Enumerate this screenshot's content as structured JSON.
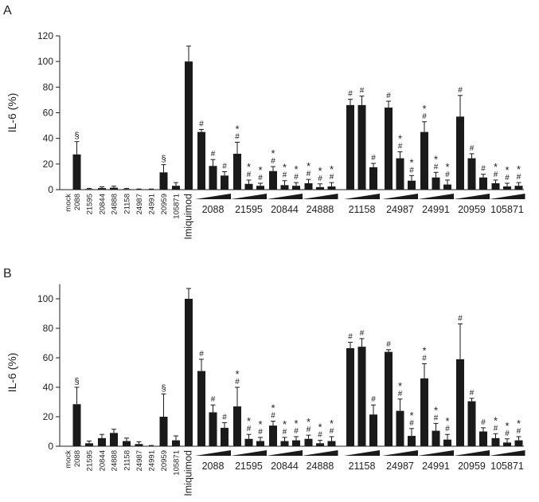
{
  "chart_data": [
    {
      "panel_label": "A",
      "type": "bar",
      "ylabel": "IL-6 (%)",
      "ylim": [
        0,
        120
      ],
      "yticks": [
        0,
        20,
        40,
        60,
        80,
        100,
        120
      ],
      "single_labels": [
        "mock",
        "2088",
        "21595",
        "20844",
        "24888",
        "21158",
        "24987",
        "24991",
        "20959",
        "105871",
        "Imiquimod"
      ],
      "single_values": [
        0,
        27.5,
        0.5,
        1.2,
        1.5,
        0.5,
        0.2,
        0.2,
        13.5,
        3
      ],
      "single_errors": [
        0,
        10,
        0.5,
        1,
        1.2,
        0.5,
        0.3,
        0.3,
        6,
        2.5
      ],
      "single_marks": [
        "",
        "§",
        "",
        "",
        "",
        "",
        "",
        "",
        "§",
        ""
      ],
      "imiquimod_value": 100,
      "imiquimod_error": 12,
      "groups": [
        {
          "name": "2088",
          "values": [
            45,
            18.5,
            11
          ],
          "errors": [
            2,
            5,
            3
          ],
          "marks": [
            "#",
            "#",
            "#"
          ],
          "stars": [
            false,
            false,
            false
          ]
        },
        {
          "name": "21595",
          "values": [
            28,
            4.5,
            3
          ],
          "errors": [
            9,
            3,
            2
          ],
          "marks": [
            "#",
            "#",
            "#"
          ],
          "stars": [
            true,
            true,
            true
          ]
        },
        {
          "name": "20844",
          "values": [
            14.5,
            3.5,
            3
          ],
          "errors": [
            3.5,
            3.5,
            2.5
          ],
          "marks": [
            "#",
            "#",
            "#"
          ],
          "stars": [
            true,
            true,
            true
          ]
        },
        {
          "name": "24888",
          "values": [
            5,
            2,
            2.5
          ],
          "errors": [
            3,
            2.5,
            3
          ],
          "marks": [
            "#",
            "#",
            "#"
          ],
          "stars": [
            true,
            true,
            true
          ]
        },
        {
          "name": "21158",
          "values": [
            66,
            66,
            17.5
          ],
          "errors": [
            4.5,
            7,
            3
          ],
          "marks": [
            "#",
            "#",
            "#"
          ],
          "stars": [
            false,
            false,
            false
          ]
        },
        {
          "name": "24987",
          "values": [
            64,
            24.5,
            7
          ],
          "errors": [
            5,
            5,
            4
          ],
          "marks": [
            "#",
            "#",
            "#"
          ],
          "stars": [
            false,
            true,
            true
          ]
        },
        {
          "name": "24991",
          "values": [
            45,
            9.5,
            4
          ],
          "errors": [
            8,
            4,
            3.5
          ],
          "marks": [
            "#",
            "#",
            "#"
          ],
          "stars": [
            true,
            true,
            true
          ]
        },
        {
          "name": "20959",
          "values": [
            57,
            24.5,
            9.5
          ],
          "errors": [
            16.5,
            3.5,
            2.5
          ],
          "marks": [
            "#",
            "#",
            "#"
          ],
          "stars": [
            false,
            false,
            false
          ]
        },
        {
          "name": "105871",
          "values": [
            5,
            2.5,
            3
          ],
          "errors": [
            2.5,
            2.5,
            2.5
          ],
          "marks": [
            "#",
            "#",
            "#"
          ],
          "stars": [
            true,
            true,
            true
          ]
        }
      ]
    },
    {
      "panel_label": "B",
      "type": "bar",
      "ylabel": "IL-6 (%)",
      "ylim": [
        0,
        110
      ],
      "yticks": [
        0,
        20,
        40,
        60,
        80,
        100
      ],
      "single_labels": [
        "mock",
        "2088",
        "21595",
        "20844",
        "24888",
        "21158",
        "24987",
        "24991",
        "20959",
        "105871",
        "Imiquimod"
      ],
      "single_values": [
        0,
        28.5,
        2,
        5.5,
        9,
        3.5,
        1.5,
        0.2,
        20,
        4
      ],
      "single_errors": [
        0,
        11.5,
        1.5,
        2.5,
        2.5,
        2,
        1.5,
        0.3,
        15.5,
        3
      ],
      "single_marks": [
        "",
        "§",
        "",
        "",
        "",
        "",
        "",
        "",
        "§",
        ""
      ],
      "imiquimod_value": 100,
      "imiquimod_error": 7,
      "groups": [
        {
          "name": "2088",
          "values": [
            51,
            23,
            12.5
          ],
          "errors": [
            8,
            5,
            3.5
          ],
          "marks": [
            "#",
            "#",
            "#"
          ],
          "stars": [
            false,
            false,
            false
          ]
        },
        {
          "name": "21595",
          "values": [
            27,
            5,
            3.5
          ],
          "errors": [
            13,
            3,
            2.5
          ],
          "marks": [
            "#",
            "#",
            "#"
          ],
          "stars": [
            true,
            true,
            true
          ]
        },
        {
          "name": "20844",
          "values": [
            14,
            3.5,
            4
          ],
          "errors": [
            3,
            2.5,
            2.5
          ],
          "marks": [
            "#",
            "#",
            "#"
          ],
          "stars": [
            true,
            true,
            true
          ]
        },
        {
          "name": "24888",
          "values": [
            5,
            2,
            3.5
          ],
          "errors": [
            2.5,
            2,
            3
          ],
          "marks": [
            "#",
            "#",
            "#"
          ],
          "stars": [
            true,
            true,
            true
          ]
        },
        {
          "name": "21158",
          "values": [
            66.5,
            67.5,
            21.5
          ],
          "errors": [
            4,
            5.5,
            6.5
          ],
          "marks": [
            "#",
            "#",
            "#"
          ],
          "stars": [
            false,
            false,
            false
          ]
        },
        {
          "name": "24987",
          "values": [
            64,
            24,
            7
          ],
          "errors": [
            1.5,
            8,
            5
          ],
          "marks": [
            "#",
            "#",
            "#"
          ],
          "stars": [
            false,
            true,
            true
          ]
        },
        {
          "name": "24991",
          "values": [
            46,
            10.5,
            4.5
          ],
          "errors": [
            10,
            5,
            3.5
          ],
          "marks": [
            "#",
            "#",
            "#"
          ],
          "stars": [
            true,
            true,
            true
          ]
        },
        {
          "name": "20959",
          "values": [
            59,
            30.5,
            10
          ],
          "errors": [
            24,
            2,
            2.5
          ],
          "marks": [
            "#",
            "#",
            "#"
          ],
          "stars": [
            false,
            false,
            false
          ]
        },
        {
          "name": "105871",
          "values": [
            5.5,
            2.5,
            4
          ],
          "errors": [
            3,
            2.5,
            2.5
          ],
          "marks": [
            "#",
            "#",
            "#"
          ],
          "stars": [
            true,
            true,
            true
          ]
        }
      ]
    }
  ]
}
